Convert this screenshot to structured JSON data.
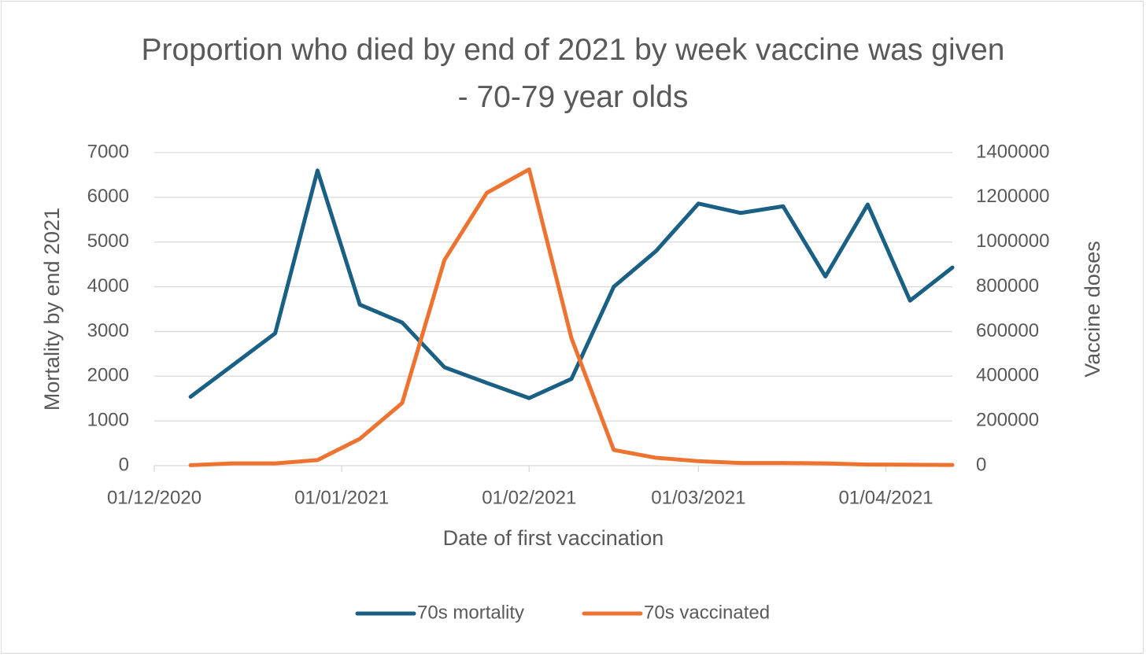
{
  "chart_data": {
    "type": "line",
    "title": "Proportion who died by end of 2021 by week vaccine was given - 70-79 year olds",
    "x_label": "Date of first vaccination",
    "y_label": "Mortality by end 2021",
    "y2_label": "Vaccine doses",
    "x": [
      "2020-12-07",
      "2020-12-14",
      "2020-12-21",
      "2020-12-28",
      "2021-01-04",
      "2021-01-11",
      "2021-01-18",
      "2021-01-25",
      "2021-02-01",
      "2021-02-08",
      "2021-02-15",
      "2021-02-22",
      "2021-03-01",
      "2021-03-08",
      "2021-03-15",
      "2021-03-22",
      "2021-03-29",
      "2021-04-05",
      "2021-04-12"
    ],
    "series": [
      {
        "name": "70s mortality",
        "color": "#1a5f84",
        "axis": "y",
        "values": [
          1540,
          2250,
          2960,
          6600,
          3600,
          3200,
          2200,
          1850,
          1510,
          1940,
          4000,
          4800,
          5860,
          5650,
          5800,
          4230,
          5840,
          3690,
          4430
        ]
      },
      {
        "name": "70s vaccinated",
        "color": "#ee7230",
        "axis": "y2",
        "values": [
          2000,
          10000,
          10000,
          25000,
          120000,
          280000,
          920000,
          1220000,
          1325000,
          570000,
          70000,
          35000,
          20000,
          12000,
          12000,
          10000,
          5000,
          4000,
          3000
        ]
      }
    ],
    "xlim": [
      "2020-12-01",
      "2021-04-12"
    ],
    "xticks": [
      {
        "value": "2020-12-01",
        "label": "01/12/2020"
      },
      {
        "value": "2021-01-01",
        "label": "01/01/2021"
      },
      {
        "value": "2021-02-01",
        "label": "01/02/2021"
      },
      {
        "value": "2021-03-01",
        "label": "01/03/2021"
      },
      {
        "value": "2021-04-01",
        "label": "01/04/2021"
      }
    ],
    "ylim": [
      0,
      7000
    ],
    "yticks": [
      0,
      1000,
      2000,
      3000,
      4000,
      5000,
      6000,
      7000
    ],
    "y2lim": [
      0,
      1400000
    ],
    "y2ticks": [
      0,
      200000,
      400000,
      600000,
      800000,
      1000000,
      1200000,
      1400000
    ],
    "grid": true,
    "legend": "bottom"
  }
}
